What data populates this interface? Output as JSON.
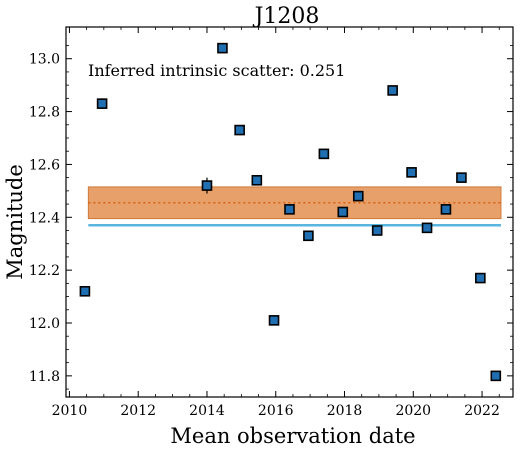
{
  "chart_data": {
    "type": "scatter",
    "title": "J1208",
    "xlabel": "Mean observation date",
    "ylabel": "Magnitude",
    "xlim": [
      2009.9,
      2022.9
    ],
    "ylim": [
      11.72,
      13.12
    ],
    "xticks": [
      2010,
      2012,
      2014,
      2016,
      2018,
      2020,
      2022
    ],
    "yticks": [
      11.8,
      12.0,
      12.2,
      12.4,
      12.6,
      12.8,
      13.0
    ],
    "annotation": "Inferred intrinsic scatter: 0.251",
    "grid": false,
    "points": {
      "x": [
        2010.45,
        2010.95,
        2014.0,
        2014.45,
        2014.95,
        2015.45,
        2015.95,
        2016.4,
        2016.95,
        2017.4,
        2017.95,
        2018.4,
        2018.95,
        2019.4,
        2019.95,
        2020.4,
        2020.95,
        2021.4,
        2021.95,
        2022.4
      ],
      "y": [
        12.12,
        12.83,
        12.52,
        13.04,
        12.73,
        12.54,
        12.01,
        12.43,
        12.33,
        12.64,
        12.42,
        12.48,
        12.35,
        12.88,
        12.57,
        12.36,
        12.43,
        12.55,
        12.17,
        11.8
      ],
      "yerr": [
        0.005,
        0.02,
        0.03,
        0.005,
        0.005,
        0.005,
        0.005,
        0.005,
        0.005,
        0.005,
        0.005,
        0.005,
        0.01,
        0.005,
        0.005,
        0.005,
        0.005,
        0.005,
        0.005,
        0.005
      ],
      "color": "#1f6fb2"
    },
    "mean_line": {
      "y": 12.455,
      "color": "#d9600f",
      "style": "dotted"
    },
    "scatter_band": {
      "y_low": 12.395,
      "y_high": 12.515,
      "color": "#e8a06a"
    },
    "reference_line": {
      "y": 12.37,
      "color": "#5ab4e0"
    }
  }
}
